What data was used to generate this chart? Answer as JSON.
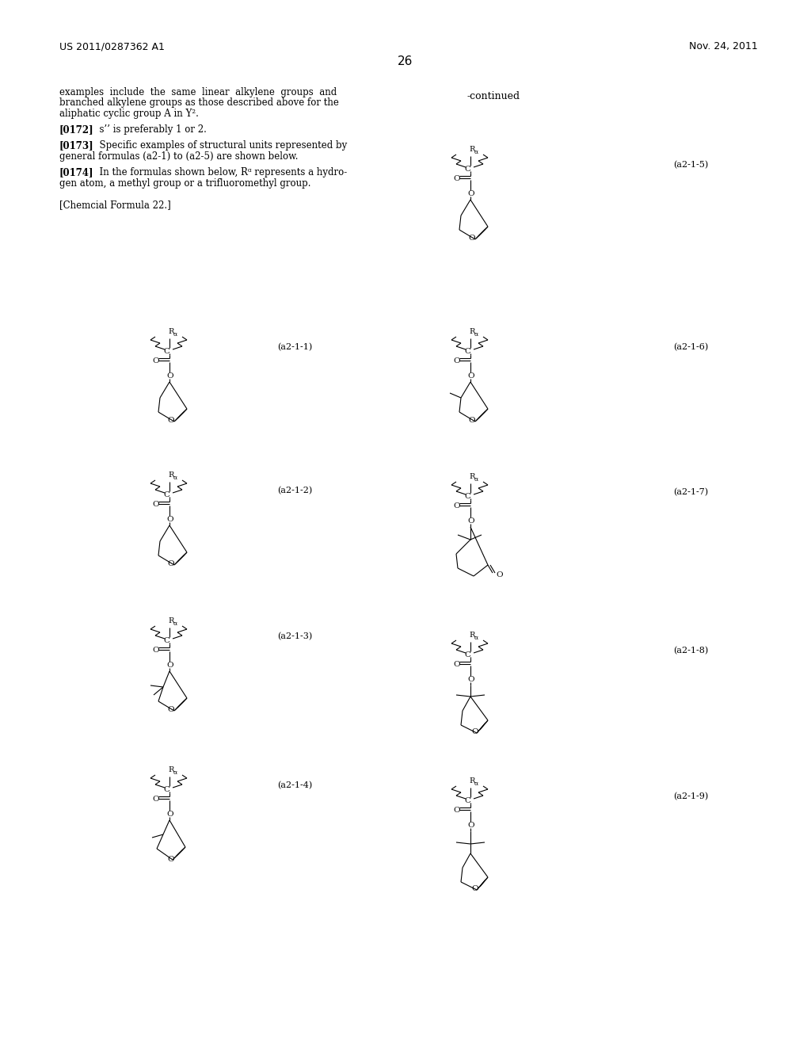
{
  "page_number": "26",
  "patent_number": "US 2011/0287362 A1",
  "patent_date": "Nov. 24, 2011",
  "continued_label": "-continued",
  "chemical_formula_label": "[Chemcial Formula 22.]",
  "background_color": "#ffffff"
}
